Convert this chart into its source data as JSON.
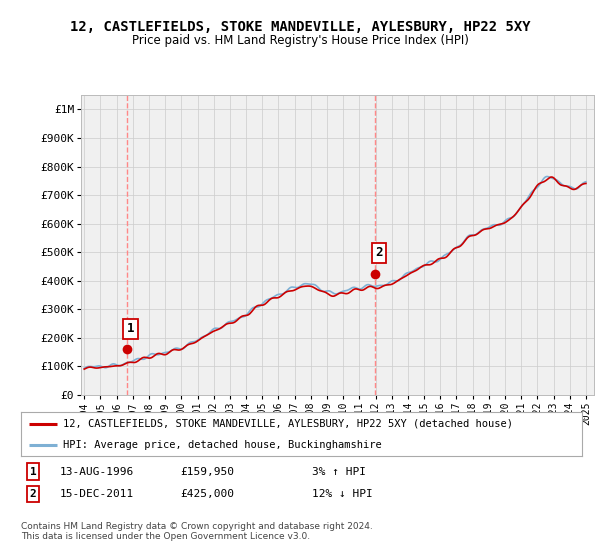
{
  "title": "12, CASTLEFIELDS, STOKE MANDEVILLE, AYLESBURY, HP22 5XY",
  "subtitle": "Price paid vs. HM Land Registry's House Price Index (HPI)",
  "ylabel_ticks": [
    "£0",
    "£100K",
    "£200K",
    "£300K",
    "£400K",
    "£500K",
    "£600K",
    "£700K",
    "£800K",
    "£900K",
    "£1M"
  ],
  "ytick_vals": [
    0,
    100000,
    200000,
    300000,
    400000,
    500000,
    600000,
    700000,
    800000,
    900000,
    1000000
  ],
  "ylim": [
    0,
    1050000
  ],
  "xlim_start": 1993.8,
  "xlim_end": 2025.5,
  "sale1_x": 1996.617,
  "sale1_y": 159950,
  "sale2_x": 2011.958,
  "sale2_y": 425000,
  "red_line_color": "#cc0000",
  "blue_line_color": "#7eb0d4",
  "sale_dot_color": "#cc0000",
  "vline_color": "#ff8888",
  "background_color": "#ffffff",
  "plot_bg_color": "#f0f0f0",
  "grid_color": "#cccccc",
  "legend_red_label": "12, CASTLEFIELDS, STOKE MANDEVILLE, AYLESBURY, HP22 5XY (detached house)",
  "legend_blue_label": "HPI: Average price, detached house, Buckinghamshire",
  "note1_date": "13-AUG-1996",
  "note1_price": "£159,950",
  "note1_hpi": "3% ↑ HPI",
  "note2_date": "15-DEC-2011",
  "note2_price": "£425,000",
  "note2_hpi": "12% ↓ HPI",
  "footer": "Contains HM Land Registry data © Crown copyright and database right 2024.\nThis data is licensed under the Open Government Licence v3.0.",
  "hpi_years": [
    1994.0,
    1994.5,
    1995.0,
    1995.5,
    1996.0,
    1996.5,
    1997.0,
    1997.5,
    1998.0,
    1998.5,
    1999.0,
    1999.5,
    2000.0,
    2000.5,
    2001.0,
    2001.5,
    2002.0,
    2002.5,
    2003.0,
    2003.5,
    2004.0,
    2004.5,
    2005.0,
    2005.5,
    2006.0,
    2006.5,
    2007.0,
    2007.5,
    2008.0,
    2008.5,
    2009.0,
    2009.5,
    2010.0,
    2010.5,
    2011.0,
    2011.5,
    2012.0,
    2012.5,
    2013.0,
    2013.5,
    2014.0,
    2014.5,
    2015.0,
    2015.5,
    2016.0,
    2016.5,
    2017.0,
    2017.5,
    2018.0,
    2018.5,
    2019.0,
    2019.5,
    2020.0,
    2020.5,
    2021.0,
    2021.5,
    2022.0,
    2022.5,
    2023.0,
    2023.5,
    2024.0,
    2024.5,
    2025.0
  ],
  "hpi_values": [
    93000,
    96000,
    99000,
    103000,
    107000,
    112000,
    118000,
    125000,
    133000,
    140000,
    148000,
    158000,
    168000,
    180000,
    193000,
    208000,
    223000,
    238000,
    253000,
    268000,
    285000,
    305000,
    322000,
    335000,
    348000,
    362000,
    375000,
    388000,
    390000,
    378000,
    362000,
    355000,
    360000,
    368000,
    375000,
    382000,
    385000,
    388000,
    395000,
    408000,
    422000,
    438000,
    453000,
    466000,
    480000,
    498000,
    518000,
    540000,
    558000,
    572000,
    585000,
    598000,
    608000,
    630000,
    660000,
    695000,
    730000,
    755000,
    758000,
    740000,
    728000,
    732000,
    745000
  ],
  "red_years": [
    1994.0,
    1994.5,
    1995.0,
    1995.5,
    1996.0,
    1996.5,
    1997.0,
    1997.5,
    1998.0,
    1998.5,
    1999.0,
    1999.5,
    2000.0,
    2000.5,
    2001.0,
    2001.5,
    2002.0,
    2002.5,
    2003.0,
    2003.5,
    2004.0,
    2004.5,
    2005.0,
    2005.5,
    2006.0,
    2006.5,
    2007.0,
    2007.5,
    2008.0,
    2008.5,
    2009.0,
    2009.5,
    2010.0,
    2010.5,
    2011.0,
    2011.5,
    2012.0,
    2012.5,
    2013.0,
    2013.5,
    2014.0,
    2014.5,
    2015.0,
    2015.5,
    2016.0,
    2016.5,
    2017.0,
    2017.5,
    2018.0,
    2018.5,
    2019.0,
    2019.5,
    2020.0,
    2020.5,
    2021.0,
    2021.5,
    2022.0,
    2022.5,
    2023.0,
    2023.5,
    2024.0,
    2024.5,
    2025.0
  ],
  "red_values": [
    90000,
    93000,
    96000,
    100000,
    104000,
    109000,
    115000,
    122000,
    130000,
    137000,
    145000,
    155000,
    165000,
    177000,
    190000,
    205000,
    220000,
    235000,
    250000,
    265000,
    282000,
    302000,
    318000,
    330000,
    342000,
    356000,
    368000,
    380000,
    382000,
    370000,
    355000,
    348000,
    353000,
    361000,
    368000,
    376000,
    378000,
    382000,
    390000,
    403000,
    418000,
    435000,
    450000,
    463000,
    477000,
    495000,
    515000,
    538000,
    556000,
    570000,
    582000,
    595000,
    605000,
    628000,
    658000,
    692000,
    728000,
    752000,
    755000,
    738000,
    725000,
    730000,
    742000
  ]
}
